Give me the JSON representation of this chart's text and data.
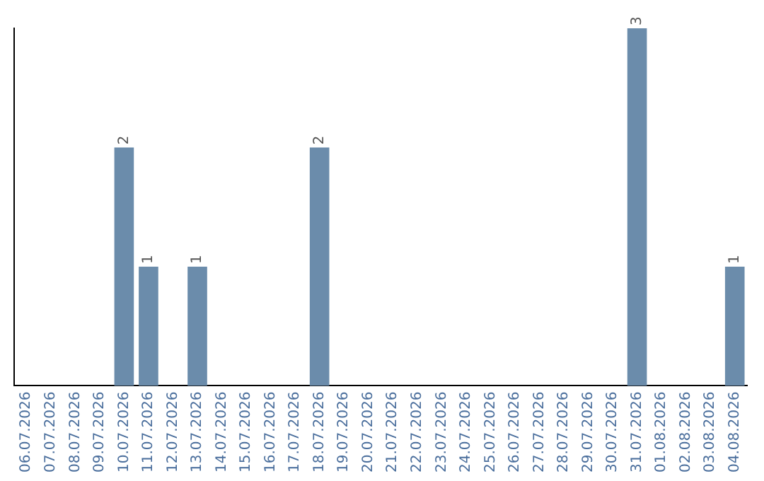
{
  "chart_data": {
    "type": "bar",
    "categories": [
      "06.07.2026",
      "07.07.2026",
      "08.07.2026",
      "09.07.2026",
      "10.07.2026",
      "11.07.2026",
      "12.07.2026",
      "13.07.2026",
      "14.07.2026",
      "15.07.2026",
      "16.07.2026",
      "17.07.2026",
      "18.07.2026",
      "19.07.2026",
      "20.07.2026",
      "21.07.2026",
      "22.07.2026",
      "23.07.2026",
      "24.07.2026",
      "25.07.2026",
      "26.07.2026",
      "27.07.2026",
      "28.07.2026",
      "29.07.2026",
      "30.07.2026",
      "31.07.2026",
      "01.08.2026",
      "02.08.2026",
      "03.08.2026",
      "04.08.2026"
    ],
    "values": [
      0,
      0,
      0,
      0,
      2,
      1,
      0,
      1,
      0,
      0,
      0,
      0,
      2,
      0,
      0,
      0,
      0,
      0,
      0,
      0,
      0,
      0,
      0,
      0,
      0,
      3,
      0,
      0,
      0,
      1
    ],
    "value_labels": [
      null,
      null,
      null,
      null,
      "2",
      "1",
      null,
      "1",
      null,
      null,
      null,
      null,
      "2",
      null,
      null,
      null,
      null,
      null,
      null,
      null,
      null,
      null,
      null,
      null,
      null,
      "3",
      null,
      null,
      null,
      "1"
    ],
    "color": "#6b8cab",
    "ylim": [
      0,
      3
    ],
    "tick_labels": "x",
    "grid": false,
    "legend": false
  }
}
